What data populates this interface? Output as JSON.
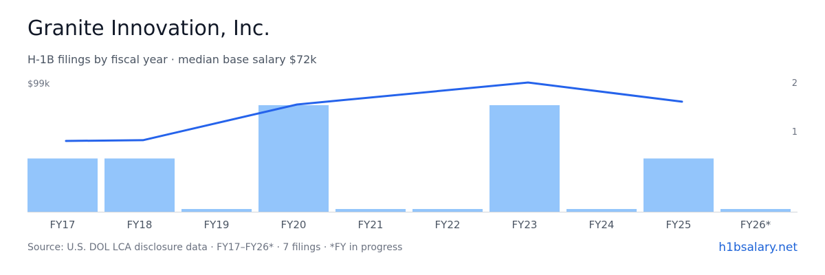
{
  "header": {
    "title": "Granite Innovation, Inc.",
    "subtitle": "H-1B filings by fiscal year · median base salary $72k"
  },
  "footer": {
    "source": "Source: U.S. DOL LCA disclosure data · FY17–FY26* · 7 filings · *FY in progress",
    "brand": "h1bsalary.net"
  },
  "colors": {
    "bar": "#93c5fb",
    "line": "#2563eb",
    "brand": "#1d63d8",
    "baseline": "#d1d5db"
  },
  "chart_data": {
    "type": "bar",
    "categories": [
      "FY17",
      "FY18",
      "FY19",
      "FY20",
      "FY21",
      "FY22",
      "FY23",
      "FY24",
      "FY25",
      "FY26*"
    ],
    "series": [
      {
        "type": "bar",
        "axis": "right",
        "values": [
          1,
          1,
          0,
          2,
          0,
          0,
          2,
          0,
          1,
          0
        ]
      },
      {
        "type": "line",
        "axis": "left",
        "values": [
          68500,
          68900,
          null,
          87500,
          null,
          null,
          99000,
          null,
          89000,
          null
        ]
      }
    ],
    "left_axis": {
      "top_label": "$99k",
      "max": 99000
    },
    "right_axis": {
      "tick_labels": [
        "2",
        "1"
      ],
      "max": 2
    },
    "grid": false,
    "legend": "none"
  }
}
